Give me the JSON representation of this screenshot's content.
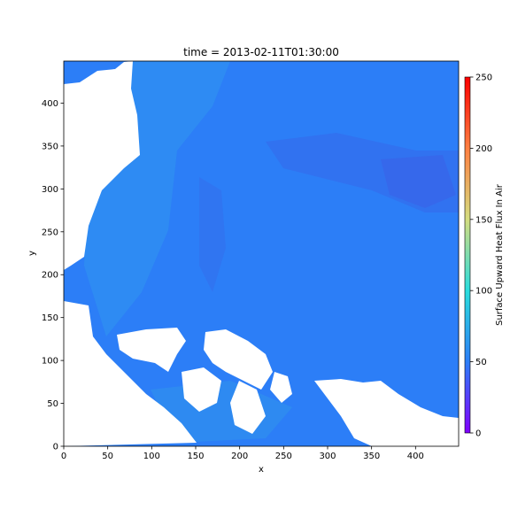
{
  "chart_data": {
    "type": "heatmap",
    "title": "time = 2013-02-11T01:30:00",
    "xlabel": "x",
    "ylabel": "y",
    "xlim": [
      0,
      449
    ],
    "ylim": [
      0,
      449
    ],
    "x_ticks": [
      0,
      50,
      100,
      150,
      200,
      250,
      300,
      350,
      400
    ],
    "y_ticks": [
      0,
      50,
      100,
      150,
      200,
      250,
      300,
      350,
      400
    ],
    "colorbar": {
      "label": "Surface Upward Heat Flux In Air",
      "range": [
        0,
        250
      ],
      "ticks": [
        0,
        50,
        100,
        150,
        200,
        250
      ],
      "colormap": "rainbow",
      "colors": [
        "#8000ff",
        "#2c7ef7",
        "#2adddd",
        "#d4dd80",
        "#ff7f41",
        "#ff0000"
      ]
    },
    "field_summary": {
      "typical_value": 40,
      "min_value_region": 10,
      "max_value_region": 65,
      "land_color": "#ffffff"
    }
  }
}
